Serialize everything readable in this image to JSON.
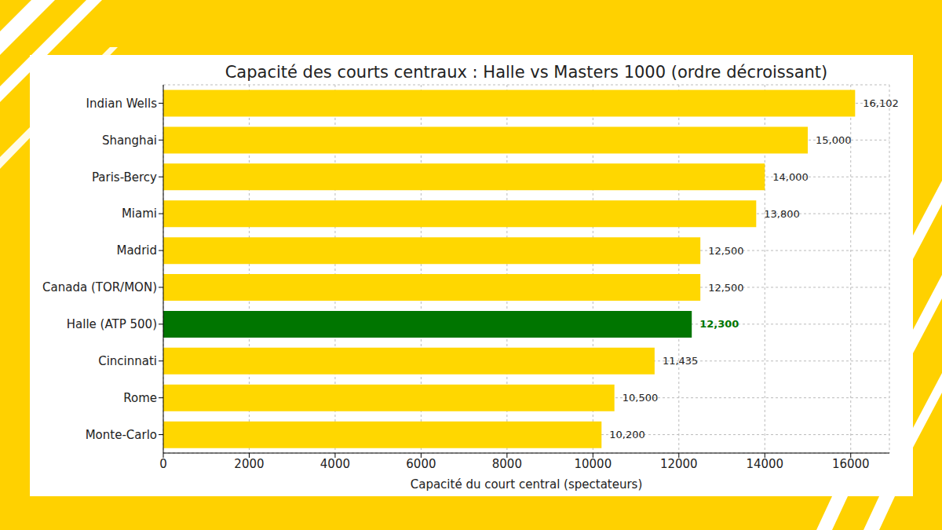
{
  "chart_data": {
    "type": "bar",
    "title": "Capacité des courts centraux : Halle vs Masters 1000 (ordre décroissant)",
    "xlabel": "Capacité du court central (spectateurs)",
    "orientation": "horizontal",
    "categories": [
      "Indian Wells",
      "Shanghai",
      "Paris-Bercy",
      "Miami",
      "Madrid",
      "Canada (TOR/MON)",
      "Halle (ATP 500)",
      "Cincinnati",
      "Rome",
      "Monte-Carlo"
    ],
    "values": [
      16102,
      15000,
      14000,
      13800,
      12500,
      12500,
      12300,
      11435,
      10500,
      10200
    ],
    "value_labels": [
      "16,102",
      "15,000",
      "14,000",
      "13,800",
      "12,500",
      "12,500",
      "12,300",
      "11,435",
      "10,500",
      "10,200"
    ],
    "color": "#FFD700",
    "colors": [
      "#FFD700",
      "#FFD700",
      "#FFD700",
      "#FFD700",
      "#FFD700",
      "#FFD700",
      "#007500",
      "#FFD700",
      "#FFD700",
      "#FFD700"
    ],
    "xlim": [
      0,
      16900
    ],
    "xticks": [
      0,
      2000,
      4000,
      6000,
      8000,
      10000,
      12000,
      14000,
      16000
    ],
    "grid": true,
    "data_labels": true
  }
}
